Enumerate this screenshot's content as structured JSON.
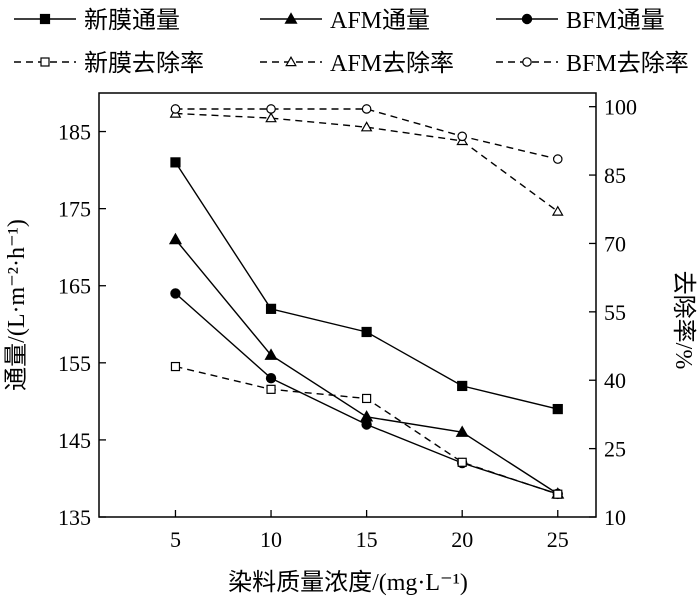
{
  "chart_data": {
    "type": "line",
    "x": [
      5,
      10,
      15,
      20,
      25
    ],
    "xlabel": "染料质量浓度/(mg·L⁻¹)",
    "ylabel_left": "通量/(L·m⁻²·h⁻¹)",
    "ylabel_right": "去除率/%",
    "xlim": [
      1,
      27
    ],
    "ylim_left": [
      135,
      190
    ],
    "ylim_right": [
      10,
      103
    ],
    "xticks": [
      "5",
      "10",
      "15",
      "20",
      "25"
    ],
    "yticks_left": [
      "135",
      "145",
      "155",
      "165",
      "175",
      "185"
    ],
    "yticks_right": [
      "10",
      "25",
      "40",
      "55",
      "70",
      "85",
      "100"
    ],
    "legend_position": "top",
    "series": [
      {
        "name": "新膜通量",
        "axis": "left",
        "style": "solid",
        "marker": "square-filled",
        "values": [
          181,
          162,
          159,
          152,
          149
        ]
      },
      {
        "name": "AFM通量",
        "axis": "left",
        "style": "solid",
        "marker": "triangle-filled",
        "values": [
          171,
          156,
          148,
          146,
          138
        ]
      },
      {
        "name": "BFM通量",
        "axis": "left",
        "style": "solid",
        "marker": "circle-filled",
        "values": [
          164,
          153,
          147,
          142,
          138
        ]
      },
      {
        "name": "新膜去除率",
        "axis": "right",
        "style": "dashed",
        "marker": "square-open",
        "values": [
          43,
          38,
          36,
          22,
          15
        ]
      },
      {
        "name": "AFM去除率",
        "axis": "right",
        "style": "dashed",
        "marker": "triangle-open",
        "values": [
          98.5,
          97.5,
          95.5,
          92.5,
          77
        ]
      },
      {
        "name": "BFM去除率",
        "axis": "right",
        "style": "dashed",
        "marker": "circle-open",
        "values": [
          99.5,
          99.5,
          99.5,
          93.5,
          88.5
        ]
      }
    ]
  }
}
